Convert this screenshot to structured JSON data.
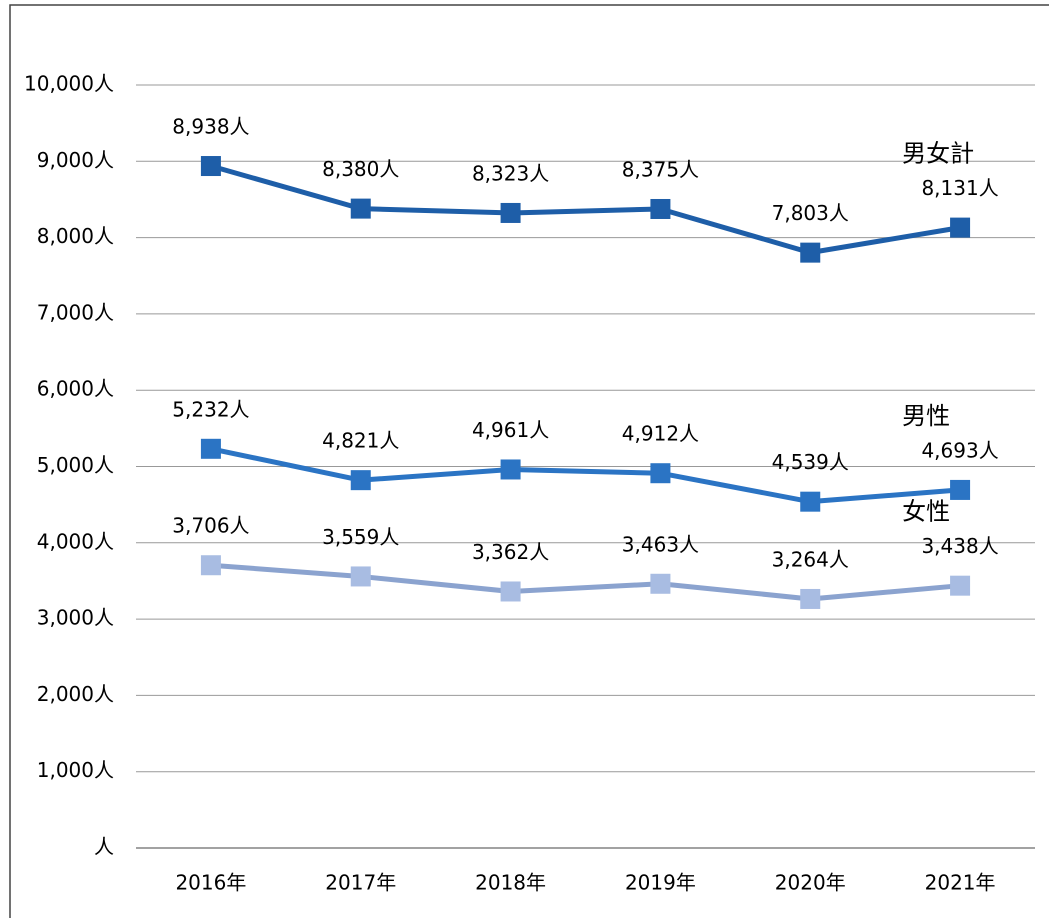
{
  "chart_data": {
    "type": "line",
    "categories": [
      "2016年",
      "2017年",
      "2018年",
      "2019年",
      "2020年",
      "2021年"
    ],
    "series": [
      {
        "name": "男女計",
        "color": "#1e5ea8",
        "marker_color": "#1e5ea8",
        "values": [
          8938,
          8380,
          8323,
          8375,
          7803,
          8131
        ],
        "value_labels": [
          "8,938人",
          "8,380人",
          "8,323人",
          "8,375人",
          "7,803人",
          "8,131人"
        ]
      },
      {
        "name": "男性",
        "color": "#2b74c4",
        "marker_color": "#2b74c4",
        "values": [
          5232,
          4821,
          4961,
          4912,
          4539,
          4693
        ],
        "value_labels": [
          "5,232人",
          "4,821人",
          "4,961人",
          "4,912人",
          "4,539人",
          "4,693人"
        ]
      },
      {
        "name": "女性",
        "color": "#8ba3cf",
        "marker_color": "#a8bce2",
        "values": [
          3706,
          3559,
          3362,
          3463,
          3264,
          3438
        ],
        "value_labels": [
          "3,706人",
          "3,559人",
          "3,362人",
          "3,463人",
          "3,264人",
          "3,438人"
        ]
      }
    ],
    "ylim": [
      0,
      10000
    ],
    "yticks": [
      {
        "value": 0,
        "label": "人"
      },
      {
        "value": 1000,
        "label": "1,000人"
      },
      {
        "value": 2000,
        "label": "2,000人"
      },
      {
        "value": 3000,
        "label": "3,000人"
      },
      {
        "value": 4000,
        "label": "4,000人"
      },
      {
        "value": 5000,
        "label": "5,000人"
      },
      {
        "value": 6000,
        "label": "6,000人"
      },
      {
        "value": 7000,
        "label": "7,000人"
      },
      {
        "value": 8000,
        "label": "8,000人"
      },
      {
        "value": 9000,
        "label": "9,000人"
      },
      {
        "value": 10000,
        "label": "10,000人"
      }
    ],
    "grid": true
  }
}
